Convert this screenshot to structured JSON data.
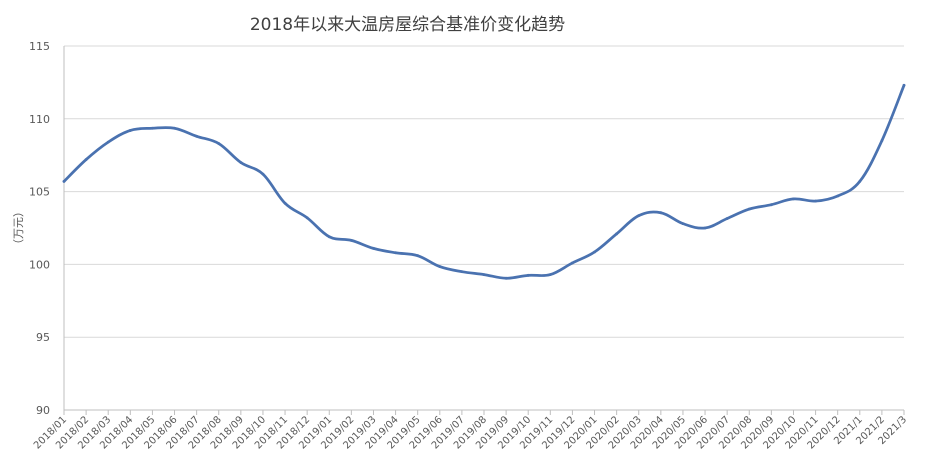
{
  "chart_data": {
    "type": "line",
    "title": "2018年以来大温房屋综合基准价变化趋势",
    "xlabel": "",
    "ylabel": "（万元）",
    "ylim": [
      90,
      115
    ],
    "yticks": [
      90,
      95,
      100,
      105,
      110,
      115
    ],
    "grid": true,
    "color": "#4a72b0",
    "categories": [
      "2018/01",
      "2018/02",
      "2018/03",
      "2018/04",
      "2018/05",
      "2018/06",
      "2018/07",
      "2018/08",
      "2018/09",
      "2018/10",
      "2018/11",
      "2018/12",
      "2019/01",
      "2019/02",
      "2019/03",
      "2019/04",
      "2019/05",
      "2019/06",
      "2019/07",
      "2019/08",
      "2019/09",
      "2019/10",
      "2019/11",
      "2019/12",
      "2020/01",
      "2020/02",
      "2020/03",
      "2020/04",
      "2020/05",
      "2020/06",
      "2020/07",
      "2020/08",
      "2020/09",
      "2020/10",
      "2020/11",
      "2020/12",
      "2021/1",
      "2021/2",
      "2021/3"
    ],
    "values": [
      105.7,
      107.2,
      108.4,
      109.2,
      109.35,
      109.35,
      108.8,
      108.3,
      107.0,
      106.2,
      104.2,
      103.2,
      101.9,
      101.65,
      101.1,
      100.8,
      100.6,
      99.85,
      99.5,
      99.3,
      99.05,
      99.25,
      99.3,
      100.1,
      100.85,
      102.1,
      103.35,
      103.55,
      102.8,
      102.5,
      103.15,
      103.8,
      104.1,
      104.5,
      104.35,
      104.7,
      105.7,
      108.5,
      112.3
    ]
  }
}
